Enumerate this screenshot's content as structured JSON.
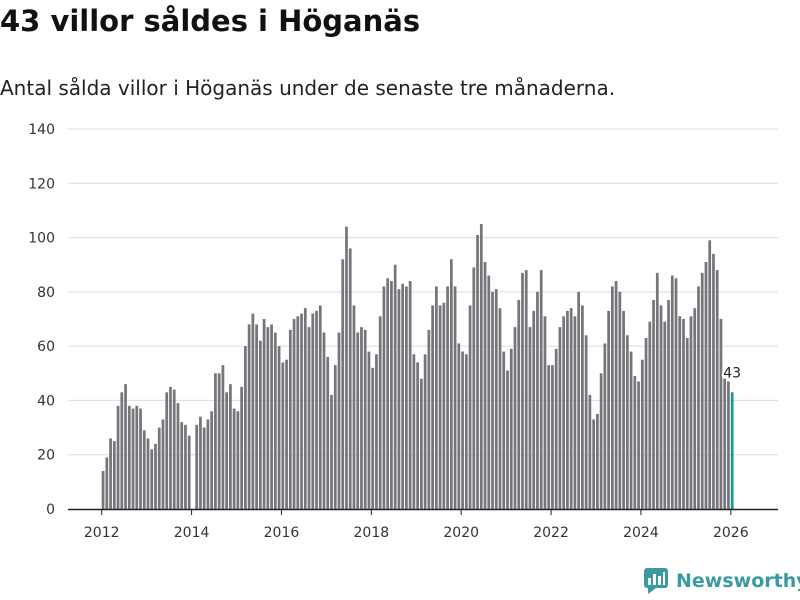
{
  "title": "43 villor såldes i Höganäs",
  "subtitle": "Antal sålda villor i Höganäs under de senaste tre månaderna.",
  "brand": {
    "name": "Newsworthy",
    "icon": "newsworthy-logo-icon"
  },
  "colors": {
    "bar": "#76757b",
    "highlight": "#1a9a94",
    "grid": "#dcdcdc",
    "axis": "#222222"
  },
  "chart_data": {
    "type": "bar",
    "title": "43 villor såldes i Höganäs",
    "xlabel": "",
    "ylabel": "",
    "ylim": [
      0,
      140
    ],
    "yticks": [
      0,
      20,
      40,
      60,
      80,
      100,
      120,
      140
    ],
    "xlim": [
      2011.25,
      2027.05
    ],
    "xticks": [
      2012,
      2014,
      2016,
      2018,
      2020,
      2022,
      2024,
      2026
    ],
    "start": {
      "year": 2012,
      "month": 1
    },
    "highlight_index": 168,
    "highlight_label": "43",
    "values": [
      14,
      19,
      26,
      25,
      38,
      43,
      46,
      38,
      37,
      38,
      37,
      29,
      26,
      22,
      24,
      30,
      33,
      43,
      45,
      44,
      39,
      32,
      31,
      27,
      0,
      31,
      34,
      30,
      33,
      36,
      50,
      50,
      53,
      43,
      46,
      37,
      36,
      45,
      60,
      68,
      72,
      68,
      62,
      70,
      67,
      68,
      65,
      60,
      54,
      55,
      66,
      70,
      71,
      72,
      74,
      67,
      72,
      73,
      75,
      65,
      56,
      42,
      53,
      65,
      92,
      104,
      96,
      75,
      65,
      67,
      66,
      58,
      52,
      57,
      71,
      82,
      85,
      84,
      90,
      81,
      83,
      82,
      84,
      57,
      54,
      48,
      57,
      66,
      75,
      82,
      75,
      76,
      82,
      92,
      82,
      61,
      58,
      57,
      75,
      89,
      101,
      105,
      91,
      86,
      80,
      81,
      74,
      58,
      51,
      59,
      67,
      77,
      87,
      88,
      67,
      73,
      80,
      88,
      71,
      53,
      53,
      59,
      67,
      71,
      73,
      74,
      71,
      80,
      75,
      64,
      42,
      33,
      35,
      50,
      61,
      73,
      82,
      84,
      80,
      73,
      64,
      58,
      49,
      47,
      55,
      63,
      69,
      77,
      87,
      75,
      69,
      77,
      86,
      85,
      71,
      70,
      63,
      71,
      74,
      82,
      87,
      91,
      99,
      94,
      88,
      70,
      48,
      47,
      43
    ]
  }
}
